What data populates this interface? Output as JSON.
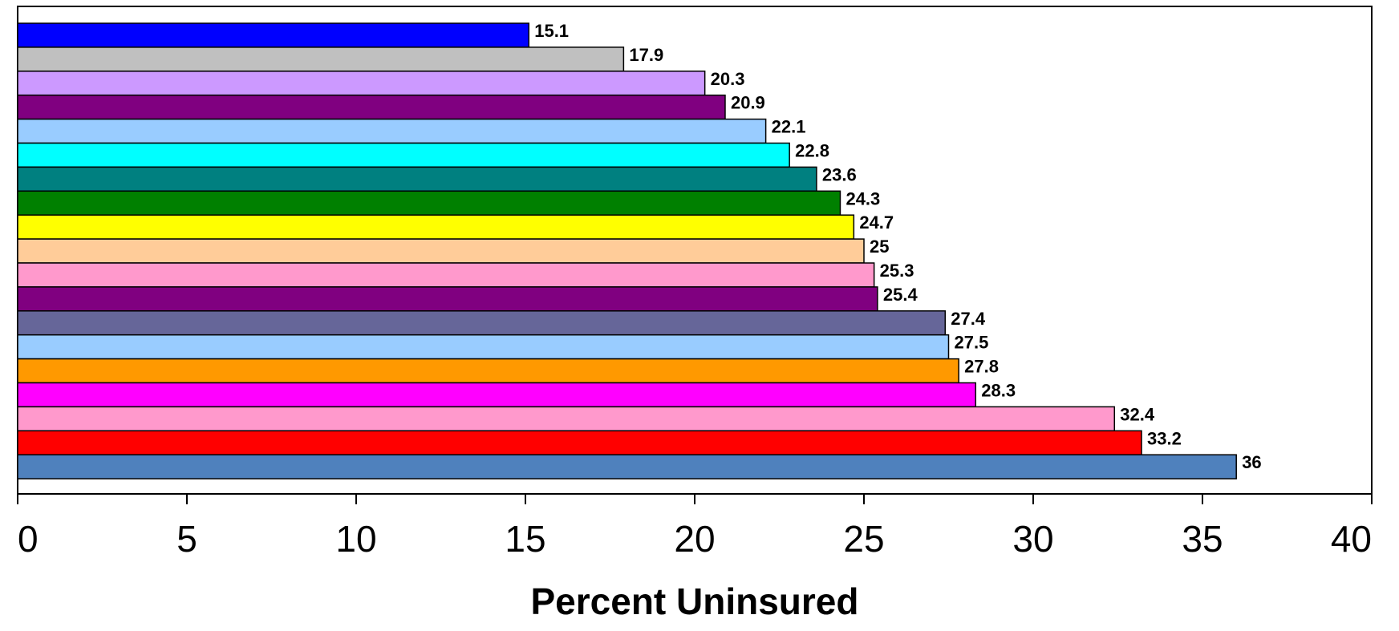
{
  "chart_data": {
    "type": "bar",
    "orientation": "horizontal",
    "title": "",
    "xlabel": "Percent Uninsured",
    "ylabel": "",
    "xlim": [
      0,
      40
    ],
    "xticks": [
      0,
      5,
      10,
      15,
      20,
      25,
      30,
      35,
      40
    ],
    "grid": false,
    "legend": "none",
    "values": [
      15.1,
      17.9,
      20.3,
      20.9,
      22.1,
      22.8,
      23.6,
      24.3,
      24.7,
      25,
      25.3,
      25.4,
      27.4,
      27.5,
      27.8,
      28.3,
      32.4,
      33.2,
      36
    ],
    "data_labels": [
      "15.1",
      "17.9",
      "20.3",
      "20.9",
      "22.1",
      "22.8",
      "23.6",
      "24.3",
      "24.7",
      "25",
      "25.3",
      "25.4",
      "27.4",
      "27.5",
      "27.8",
      "28.3",
      "32.4",
      "33.2",
      "36"
    ],
    "colors": [
      "#0000FF",
      "#C0C0C0",
      "#CC99FF",
      "#800080",
      "#99CCFF",
      "#00FFFF",
      "#008080",
      "#008000",
      "#FFFF00",
      "#FFCC99",
      "#FF99CC",
      "#800080",
      "#666699",
      "#99CCFF",
      "#FF9900",
      "#FF00FF",
      "#FF99CC",
      "#FF0000",
      "#4F81BD"
    ]
  }
}
